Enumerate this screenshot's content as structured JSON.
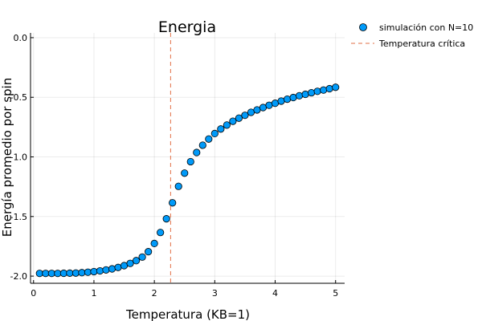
{
  "chart_data": {
    "type": "scatter",
    "title": "Energia",
    "xlabel": "Temperatura (KB=1)",
    "ylabel": "Energía promedio por spin",
    "xlim": [
      -0.05,
      5.15
    ],
    "ylim": [
      -2.06,
      0.04
    ],
    "x_ticks": [
      0,
      1,
      2,
      3,
      4,
      5
    ],
    "x_tick_labels": [
      "0",
      "1",
      "2",
      "3",
      "4",
      "5"
    ],
    "y_ticks": [
      0,
      -0.5,
      -1,
      -1.5,
      -2
    ],
    "y_tick_labels": [
      "0.0",
      "-0.5",
      "-1.0",
      "-1.5",
      "-2.0"
    ],
    "grid": true,
    "legend_position": "outside-top-right",
    "series": [
      {
        "name": "simulación con N=10",
        "kind": "scatter",
        "color": "#009af9",
        "points": [
          [
            0.1,
            -1.977
          ],
          [
            0.2,
            -1.977
          ],
          [
            0.3,
            -1.977
          ],
          [
            0.4,
            -1.977
          ],
          [
            0.5,
            -1.976
          ],
          [
            0.6,
            -1.975
          ],
          [
            0.7,
            -1.974
          ],
          [
            0.8,
            -1.971
          ],
          [
            0.9,
            -1.967
          ],
          [
            1.0,
            -1.962
          ],
          [
            1.1,
            -1.956
          ],
          [
            1.2,
            -1.948
          ],
          [
            1.3,
            -1.939
          ],
          [
            1.4,
            -1.927
          ],
          [
            1.5,
            -1.912
          ],
          [
            1.6,
            -1.893
          ],
          [
            1.7,
            -1.87
          ],
          [
            1.8,
            -1.84
          ],
          [
            1.9,
            -1.795
          ],
          [
            2.0,
            -1.726
          ],
          [
            2.1,
            -1.634
          ],
          [
            2.2,
            -1.519
          ],
          [
            2.3,
            -1.385
          ],
          [
            2.4,
            -1.247
          ],
          [
            2.5,
            -1.136
          ],
          [
            2.6,
            -1.04
          ],
          [
            2.7,
            -0.963
          ],
          [
            2.8,
            -0.902
          ],
          [
            2.9,
            -0.85
          ],
          [
            3.0,
            -0.804
          ],
          [
            3.1,
            -0.766
          ],
          [
            3.2,
            -0.733
          ],
          [
            3.3,
            -0.701
          ],
          [
            3.4,
            -0.675
          ],
          [
            3.5,
            -0.651
          ],
          [
            3.6,
            -0.626
          ],
          [
            3.7,
            -0.606
          ],
          [
            3.8,
            -0.586
          ],
          [
            3.9,
            -0.567
          ],
          [
            4.0,
            -0.55
          ],
          [
            4.1,
            -0.532
          ],
          [
            4.2,
            -0.516
          ],
          [
            4.3,
            -0.502
          ],
          [
            4.4,
            -0.487
          ],
          [
            4.5,
            -0.475
          ],
          [
            4.6,
            -0.462
          ],
          [
            4.7,
            -0.45
          ],
          [
            4.8,
            -0.439
          ],
          [
            4.9,
            -0.428
          ],
          [
            5.0,
            -0.416
          ]
        ]
      },
      {
        "name": "Temperatura crítica",
        "kind": "vline",
        "color": "#e26f46",
        "x": 2.269
      }
    ]
  }
}
